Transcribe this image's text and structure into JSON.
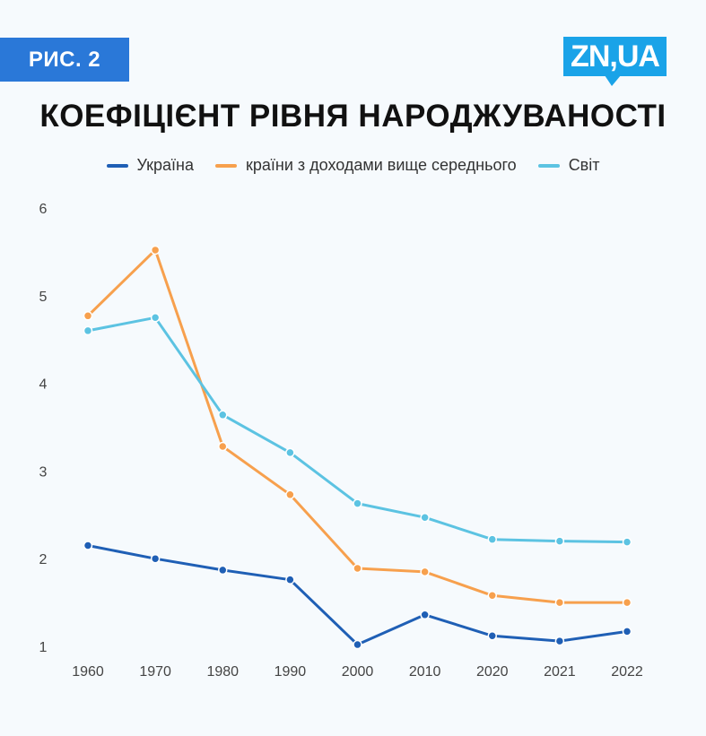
{
  "badge": {
    "label": "РИС. 2"
  },
  "logo": {
    "text": "ZN,UA"
  },
  "chart_data": {
    "type": "line",
    "title": "КОЕФІЦІЄНТ РІВНЯ НАРОДЖУВАНОСТІ",
    "x": [
      "1960",
      "1970",
      "1980",
      "1990",
      "2000",
      "2010",
      "2020",
      "2021",
      "2022"
    ],
    "ylim": [
      1,
      6
    ],
    "yticks": [
      1,
      2,
      3,
      4,
      5,
      6
    ],
    "grid": false,
    "legend_position": "top",
    "series": [
      {
        "name": "Україна",
        "color": "#1f5fb5",
        "values": [
          2.15,
          2.0,
          1.87,
          1.76,
          1.02,
          1.36,
          1.12,
          1.06,
          1.17
        ]
      },
      {
        "name": "країни з доходами вище середнього",
        "color": "#f7a04d",
        "values": [
          4.77,
          5.52,
          3.28,
          2.73,
          1.89,
          1.85,
          1.58,
          1.5,
          1.5
        ]
      },
      {
        "name": "Світ",
        "color": "#5cc3e2",
        "values": [
          4.6,
          4.75,
          3.64,
          3.21,
          2.63,
          2.47,
          2.22,
          2.2,
          2.19
        ]
      }
    ]
  }
}
